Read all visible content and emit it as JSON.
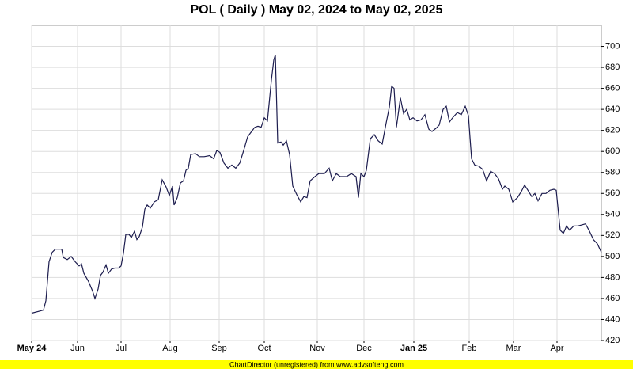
{
  "chart_data": {
    "type": "line",
    "title": "POL ( Daily ) May 02, 2024 to May 02, 2025",
    "footer": "ChartDirector (unregistered) from www.advsofteng.com",
    "x": [
      0,
      10,
      15,
      18,
      22,
      26,
      30,
      38,
      40,
      45,
      50,
      55,
      60,
      63,
      66,
      72,
      77,
      80,
      84,
      87,
      90,
      94,
      97,
      101,
      105,
      110,
      113,
      116,
      119,
      123,
      126,
      130,
      133,
      136,
      140,
      143,
      146,
      150,
      155,
      160,
      165,
      170,
      174,
      178,
      180,
      184,
      188,
      192,
      195,
      198,
      201,
      207,
      212,
      218,
      225,
      230,
      234,
      238,
      243,
      248,
      253,
      258,
      263,
      268,
      273,
      278,
      282,
      286,
      290,
      294,
      298,
      303,
      306,
      308,
      311,
      315,
      318,
      322,
      326,
      330,
      335,
      340,
      344,
      348,
      352,
      358,
      363,
      370,
      376,
      380,
      385,
      390,
      398,
      404,
      410,
      413,
      416,
      420,
      423,
      428,
      433,
      438,
      443,
      448,
      452,
      455,
      458,
      461,
      466,
      470,
      474,
      478,
      482,
      487,
      492,
      497,
      502,
      506,
      511,
      515,
      520,
      524,
      528,
      532,
      538,
      543,
      548,
      552,
      556,
      560,
      565,
      570,
      575,
      580,
      585,
      590,
      595,
      598,
      603,
      608,
      614,
      619,
      623,
      628,
      632,
      636,
      640,
      645,
      650,
      655,
      660,
      663,
      668,
      672,
      676,
      680,
      685,
      690,
      695,
      700,
      705,
      710,
      715,
      720
    ],
    "xlim": [
      0,
      720
    ],
    "xticks": [
      {
        "value": 0,
        "label": "May 24"
      },
      {
        "value": 58,
        "label": "Jun"
      },
      {
        "value": 113,
        "label": "Jul"
      },
      {
        "value": 175,
        "label": "Aug"
      },
      {
        "value": 237,
        "label": "Sep"
      },
      {
        "value": 294,
        "label": "Oct"
      },
      {
        "value": 361,
        "label": "Nov"
      },
      {
        "value": 420,
        "label": "Dec"
      },
      {
        "value": 483,
        "label": "Jan 25"
      },
      {
        "value": 553,
        "label": "Feb"
      },
      {
        "value": 609,
        "label": "Mar"
      },
      {
        "value": 664,
        "label": "Apr"
      }
    ],
    "ylim": [
      420,
      720
    ],
    "yticks": [
      420,
      440,
      460,
      480,
      500,
      520,
      540,
      560,
      580,
      600,
      620,
      640,
      660,
      680,
      700
    ],
    "grid": true,
    "series": [
      {
        "name": "POL",
        "color": "#1c1c4e",
        "values": [
          446,
          448,
          449,
          458,
          495,
          504,
          507,
          507,
          499,
          497,
          500,
          495,
          491,
          493,
          484,
          476,
          467,
          460,
          469,
          482,
          485,
          492,
          484,
          488,
          489,
          489,
          491,
          503,
          521,
          521,
          518,
          524,
          516,
          519,
          528,
          545,
          549,
          546,
          552,
          554,
          573,
          566,
          558,
          567,
          549,
          556,
          570,
          572,
          582,
          584,
          597,
          598,
          595,
          595,
          596,
          593,
          601,
          599,
          589,
          584,
          587,
          584,
          589,
          601,
          614,
          619,
          623,
          624,
          623,
          632,
          629,
          668,
          687,
          692,
          608,
          609,
          606,
          610,
          597,
          567,
          559,
          552,
          557,
          556,
          572,
          576,
          579,
          579,
          584,
          572,
          579,
          576,
          576,
          579,
          576,
          556,
          579,
          576,
          582,
          612,
          616,
          610,
          607,
          627,
          642,
          662,
          660,
          623,
          651,
          636,
          640,
          630,
          632,
          629,
          630,
          635,
          621,
          619,
          622,
          625,
          640,
          643,
          628,
          632,
          637,
          635,
          643,
          634,
          593,
          587,
          586,
          583,
          572,
          581,
          579,
          574,
          564,
          567,
          564,
          552,
          556,
          562,
          568,
          562,
          557,
          560,
          553,
          560,
          560,
          563,
          564,
          563,
          525,
          522,
          529,
          525,
          529,
          529,
          530,
          531,
          524,
          516,
          512,
          504
        ]
      }
    ]
  }
}
